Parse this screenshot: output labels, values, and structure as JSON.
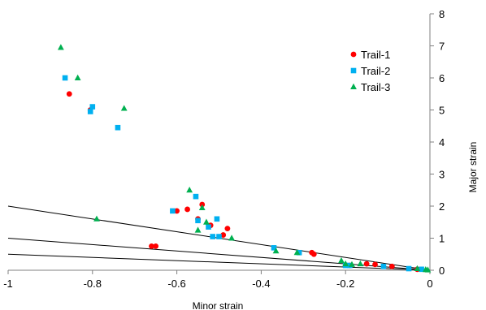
{
  "chart_data": {
    "type": "scatter",
    "xlabel": "Minor strain",
    "ylabel": "Major strain",
    "xlim": [
      -1,
      0
    ],
    "ylim": [
      0,
      8
    ],
    "x_ticks": [
      "-1",
      "-0.8",
      "-0.6",
      "-0.4",
      "-0.2",
      "0"
    ],
    "x_tick_values": [
      -1,
      -0.8,
      -0.6,
      -0.4,
      -0.2,
      0
    ],
    "y_ticks": [
      "0",
      "1",
      "2",
      "3",
      "4",
      "5",
      "6",
      "7",
      "8"
    ],
    "y_tick_values": [
      0,
      1,
      2,
      3,
      4,
      5,
      6,
      7,
      8
    ],
    "y_axis_position": "right",
    "grid": false,
    "legend_position": "top-right",
    "series": [
      {
        "name": "Trail-1",
        "marker": "circle",
        "color": "#ff0000",
        "points": [
          [
            -0.855,
            5.5
          ],
          [
            -0.805,
            5.0
          ],
          [
            -0.66,
            0.75
          ],
          [
            -0.65,
            0.75
          ],
          [
            -0.6,
            1.85
          ],
          [
            -0.575,
            1.9
          ],
          [
            -0.55,
            1.6
          ],
          [
            -0.54,
            2.05
          ],
          [
            -0.52,
            1.4
          ],
          [
            -0.49,
            1.1
          ],
          [
            -0.48,
            1.3
          ],
          [
            -0.28,
            0.55
          ],
          [
            -0.275,
            0.5
          ],
          [
            -0.19,
            0.15
          ],
          [
            -0.15,
            0.2
          ],
          [
            -0.13,
            0.18
          ],
          [
            -0.09,
            0.12
          ],
          [
            -0.03,
            0.03
          ]
        ]
      },
      {
        "name": "Trail-2",
        "marker": "square",
        "color": "#00b0f0",
        "points": [
          [
            -0.865,
            6.0
          ],
          [
            -0.8,
            5.1
          ],
          [
            -0.805,
            4.95
          ],
          [
            -0.74,
            4.45
          ],
          [
            -0.61,
            1.85
          ],
          [
            -0.555,
            2.3
          ],
          [
            -0.55,
            1.55
          ],
          [
            -0.525,
            1.35
          ],
          [
            -0.515,
            1.05
          ],
          [
            -0.505,
            1.6
          ],
          [
            -0.5,
            1.05
          ],
          [
            -0.37,
            0.7
          ],
          [
            -0.31,
            0.55
          ],
          [
            -0.2,
            0.15
          ],
          [
            -0.19,
            0.15
          ],
          [
            -0.11,
            0.12
          ],
          [
            -0.05,
            0.05
          ],
          [
            -0.02,
            0.03
          ]
        ]
      },
      {
        "name": "Trail-3",
        "marker": "triangle",
        "color": "#00b050",
        "points": [
          [
            -0.875,
            6.95
          ],
          [
            -0.835,
            6.0
          ],
          [
            -0.725,
            5.05
          ],
          [
            -0.79,
            1.6
          ],
          [
            -0.57,
            2.5
          ],
          [
            -0.55,
            1.25
          ],
          [
            -0.54,
            1.95
          ],
          [
            -0.53,
            1.5
          ],
          [
            -0.47,
            1.0
          ],
          [
            -0.365,
            0.6
          ],
          [
            -0.315,
            0.55
          ],
          [
            -0.21,
            0.3
          ],
          [
            -0.2,
            0.2
          ],
          [
            -0.185,
            0.18
          ],
          [
            -0.165,
            0.2
          ],
          [
            -0.03,
            0.05
          ],
          [
            -0.01,
            0.02
          ],
          [
            -0.005,
            0.01
          ]
        ]
      }
    ],
    "reference_lines": [
      {
        "slope": -2
      },
      {
        "slope": -1
      },
      {
        "slope": -0.5
      }
    ]
  }
}
